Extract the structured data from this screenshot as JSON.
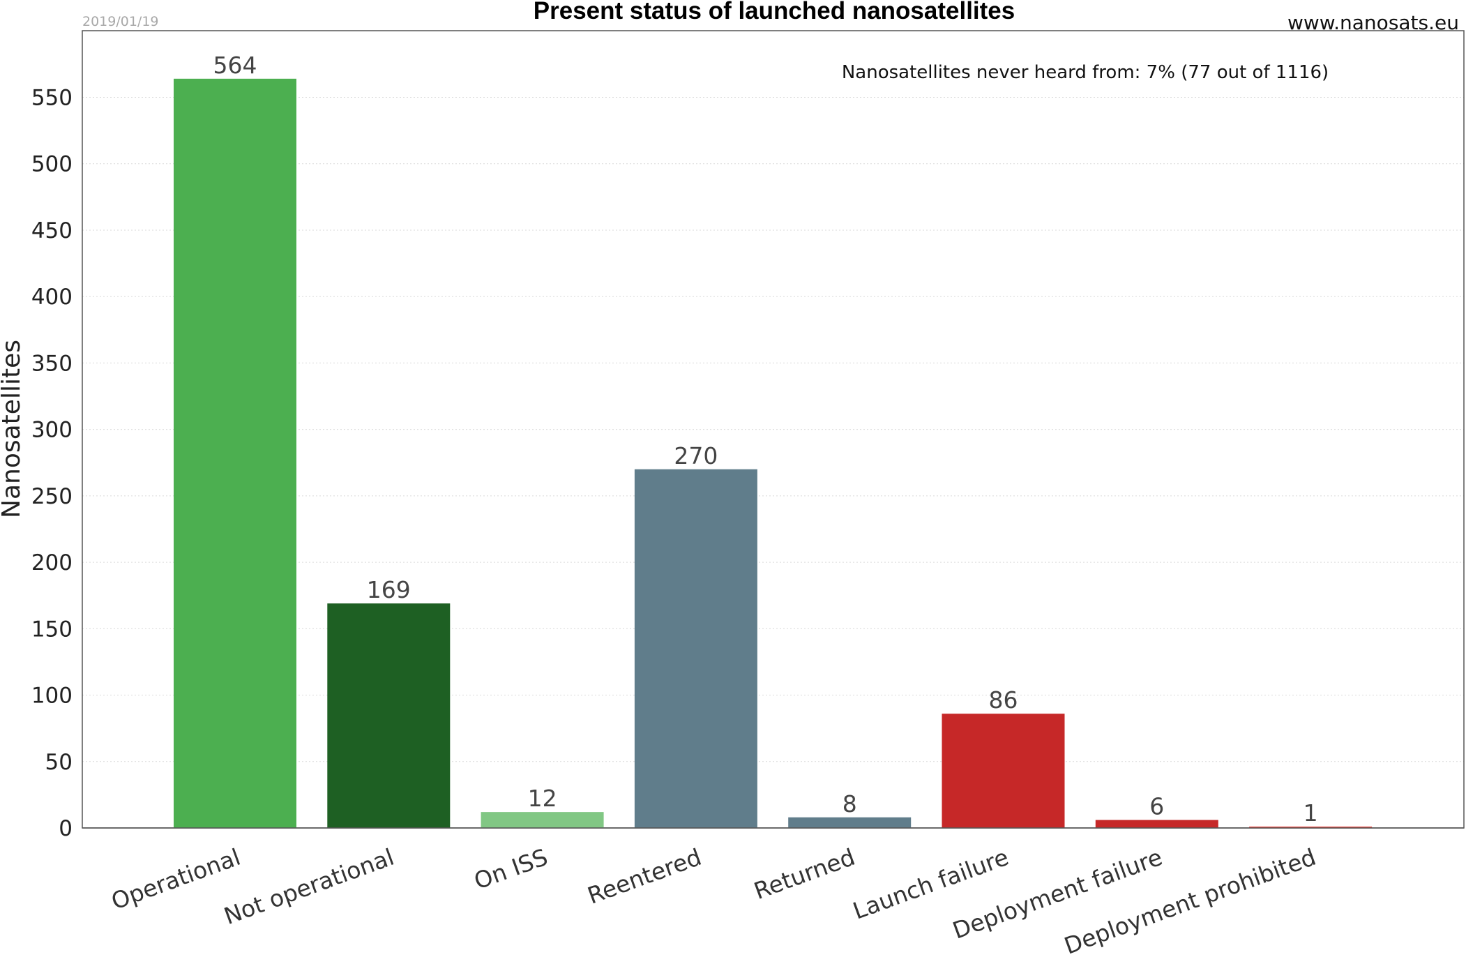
{
  "chart_data": {
    "type": "bar",
    "title": "Present status of launched nanosatellites",
    "date": "2019/01/19",
    "source": "www.nanosats.eu",
    "annotation": "Nanosatellites never heard from: 7% (77 out of 1116)",
    "xlabel": "",
    "ylabel": "Nanosatellites",
    "ylim": [
      0,
      600
    ],
    "yticks": [
      0,
      50,
      100,
      150,
      200,
      250,
      300,
      350,
      400,
      450,
      500,
      550
    ],
    "grid": "horizontal dotted",
    "categories": [
      "Operational",
      "Not operational",
      "On ISS",
      "Reentered",
      "Returned",
      "Launch failure",
      "Deployment failure",
      "Deployment prohibited"
    ],
    "values": [
      564,
      169,
      12,
      270,
      8,
      86,
      6,
      1
    ],
    "colors": [
      "#4caf50",
      "#1e6023",
      "#81c784",
      "#607d8b",
      "#607d8b",
      "#c62828",
      "#c62828",
      "#e53935"
    ]
  }
}
